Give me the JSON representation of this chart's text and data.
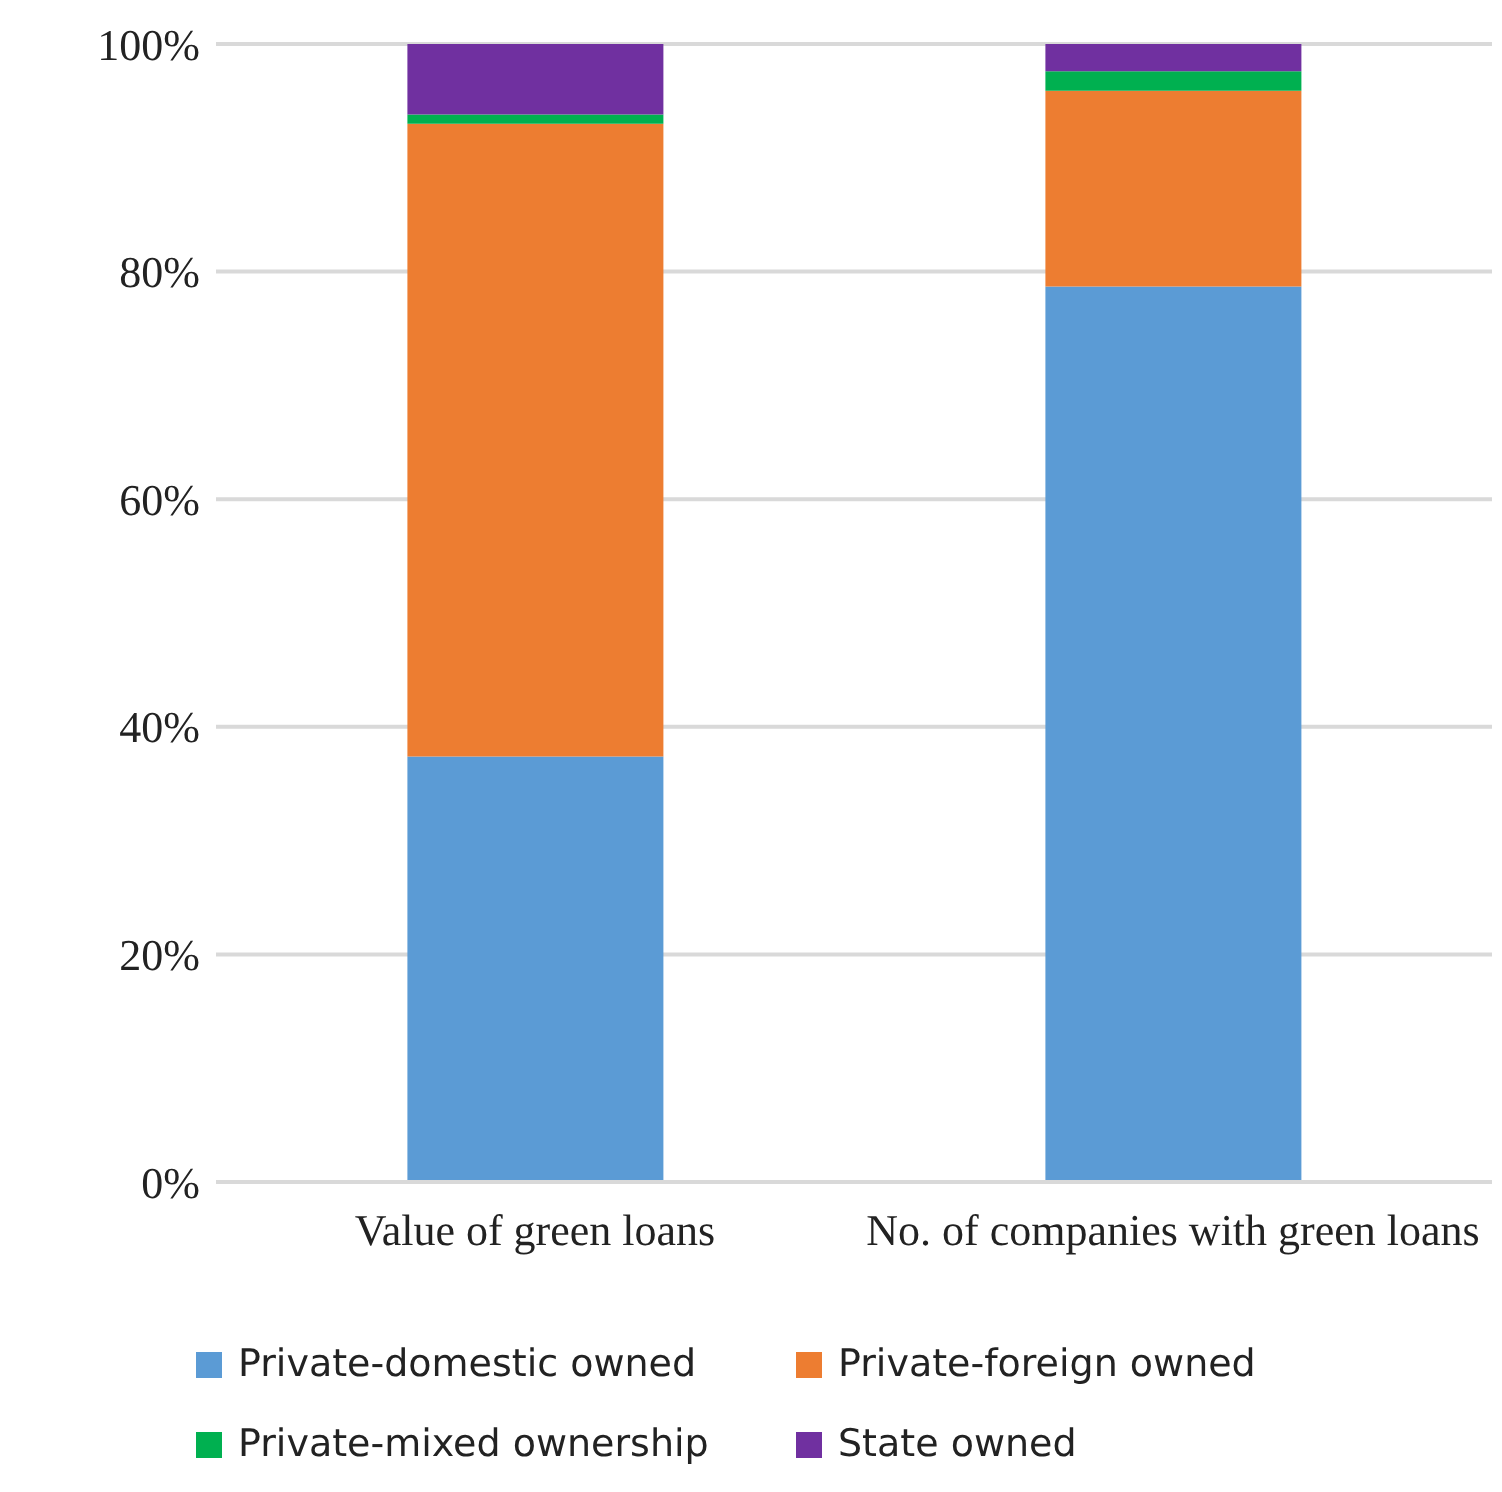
{
  "chart_data": {
    "type": "bar",
    "stacked": true,
    "categories": [
      "Value of green loans",
      "No. of companies with green loans"
    ],
    "series": [
      {
        "name": "Private-domestic owned",
        "color": "#5b9bd5",
        "values": [
          37.4,
          78.7
        ]
      },
      {
        "name": "Private-foreign owned",
        "color": "#ed7d31",
        "values": [
          55.6,
          17.2
        ]
      },
      {
        "name": "Private-mixed ownership",
        "color": "#00b050",
        "values": [
          0.8,
          1.7
        ]
      },
      {
        "name": "State owned",
        "color": "#7030a0",
        "values": [
          6.2,
          2.4
        ]
      }
    ],
    "ylim": [
      0,
      100
    ],
    "yticks": [
      {
        "value": 0,
        "label": "0%"
      },
      {
        "value": 20,
        "label": "20%"
      },
      {
        "value": 40,
        "label": "40%"
      },
      {
        "value": 60,
        "label": "60%"
      },
      {
        "value": 80,
        "label": "80%"
      },
      {
        "value": 100,
        "label": "100%"
      }
    ],
    "grid": "y",
    "legend": "bottom"
  }
}
